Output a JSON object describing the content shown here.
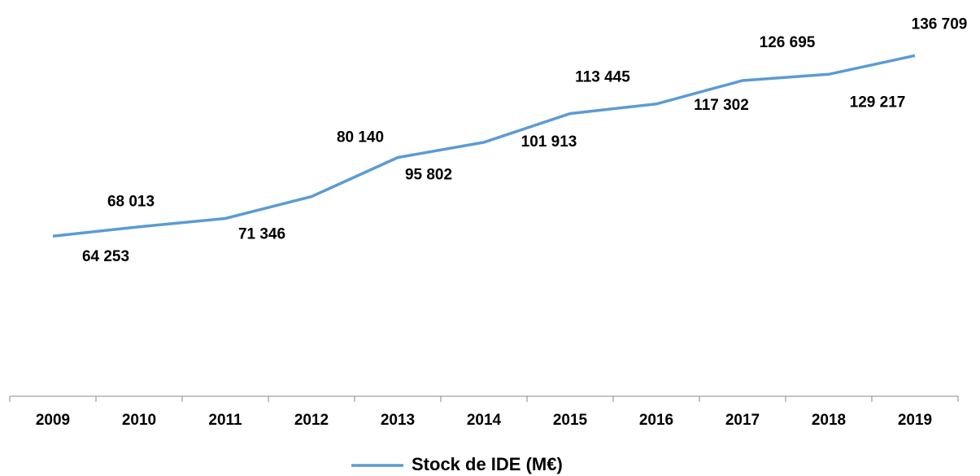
{
  "chart_data": {
    "type": "line",
    "categories": [
      "2009",
      "2010",
      "2011",
      "2012",
      "2013",
      "2014",
      "2015",
      "2016",
      "2017",
      "2018",
      "2019"
    ],
    "series": [
      {
        "name": "Stock de IDE (M€)",
        "color": "#5b9bd5",
        "values": [
          64253,
          68013,
          71346,
          80140,
          95802,
          101913,
          113445,
          117302,
          126695,
          129217,
          136709
        ],
        "value_labels": [
          "64 253",
          "68 013",
          "71 346",
          "80 140",
          "95 802",
          "101 913",
          "113 445",
          "117 302",
          "126 695",
          "129 217",
          "136 709"
        ]
      }
    ],
    "ylim": [
      0,
      160000
    ],
    "grid": false,
    "legend": "bottom"
  }
}
